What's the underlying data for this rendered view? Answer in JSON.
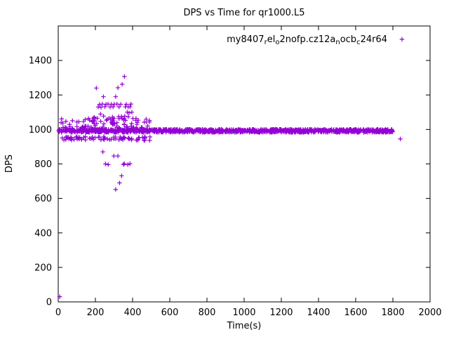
{
  "chart_data": {
    "type": "scatter",
    "title": "DPS vs Time for qr1000.L5",
    "xlabel": "Time(s)",
    "ylabel": "DPS",
    "xlim": [
      0,
      2000
    ],
    "ylim": [
      0,
      1600
    ],
    "xticks": [
      0,
      200,
      400,
      600,
      800,
      1000,
      1200,
      1400,
      1600,
      1800,
      2000
    ],
    "yticks": [
      0,
      200,
      400,
      600,
      800,
      1000,
      1200,
      1400
    ],
    "grid": false,
    "legend_position": "top-right-inside",
    "marker": "plus",
    "color": "#9400d3",
    "series_name_visible": "my8407relo2nofp.cz12anocbc24r64",
    "legend_segments": [
      {
        "t": "my8407",
        "sub": false
      },
      {
        "t": "r",
        "sub": true
      },
      {
        "t": "el",
        "sub": false
      },
      {
        "t": "o",
        "sub": true
      },
      {
        "t": "2nofp.cz12a",
        "sub": false
      },
      {
        "t": "n",
        "sub": true
      },
      {
        "t": "ocb",
        "sub": false
      },
      {
        "t": "c",
        "sub": true
      },
      {
        "t": "24r64",
        "sub": false
      }
    ],
    "bands": [
      {
        "x": [
          2,
          1800
        ],
        "y": [
          983,
          1001
        ],
        "count": 1150
      },
      {
        "x": [
          15,
          500
        ],
        "y": [
          936,
          958
        ],
        "count": 70
      },
      {
        "x": [
          15,
          500
        ],
        "y": [
          1004,
          1065
        ],
        "count": 85
      },
      {
        "x": [
          180,
          420
        ],
        "y": [
          1062,
          1090
        ],
        "count": 12
      }
    ],
    "points": [
      [
        8,
        30
      ],
      [
        205,
        1240
      ],
      [
        215,
        1130
      ],
      [
        222,
        1145
      ],
      [
        230,
        1128
      ],
      [
        237,
        1147
      ],
      [
        243,
        1190
      ],
      [
        251,
        1132
      ],
      [
        257,
        1146
      ],
      [
        268,
        1147
      ],
      [
        279,
        1130
      ],
      [
        286,
        1146
      ],
      [
        295,
        1131
      ],
      [
        301,
        1146
      ],
      [
        309,
        1190
      ],
      [
        316,
        1147
      ],
      [
        321,
        1242
      ],
      [
        327,
        1131
      ],
      [
        336,
        1146
      ],
      [
        344,
        1262
      ],
      [
        356,
        1307
      ],
      [
        361,
        1131
      ],
      [
        366,
        1146
      ],
      [
        371,
        1100
      ],
      [
        376,
        1131
      ],
      [
        381,
        1096
      ],
      [
        386,
        1131
      ],
      [
        391,
        1147
      ],
      [
        396,
        1100
      ],
      [
        240,
        870
      ],
      [
        254,
        800
      ],
      [
        269,
        796
      ],
      [
        299,
        846
      ],
      [
        309,
        652
      ],
      [
        321,
        846
      ],
      [
        330,
        690
      ],
      [
        341,
        731
      ],
      [
        350,
        797
      ],
      [
        356,
        801
      ],
      [
        374,
        796
      ],
      [
        386,
        801
      ],
      [
        394,
        940
      ],
      [
        1840,
        945
      ]
    ]
  }
}
